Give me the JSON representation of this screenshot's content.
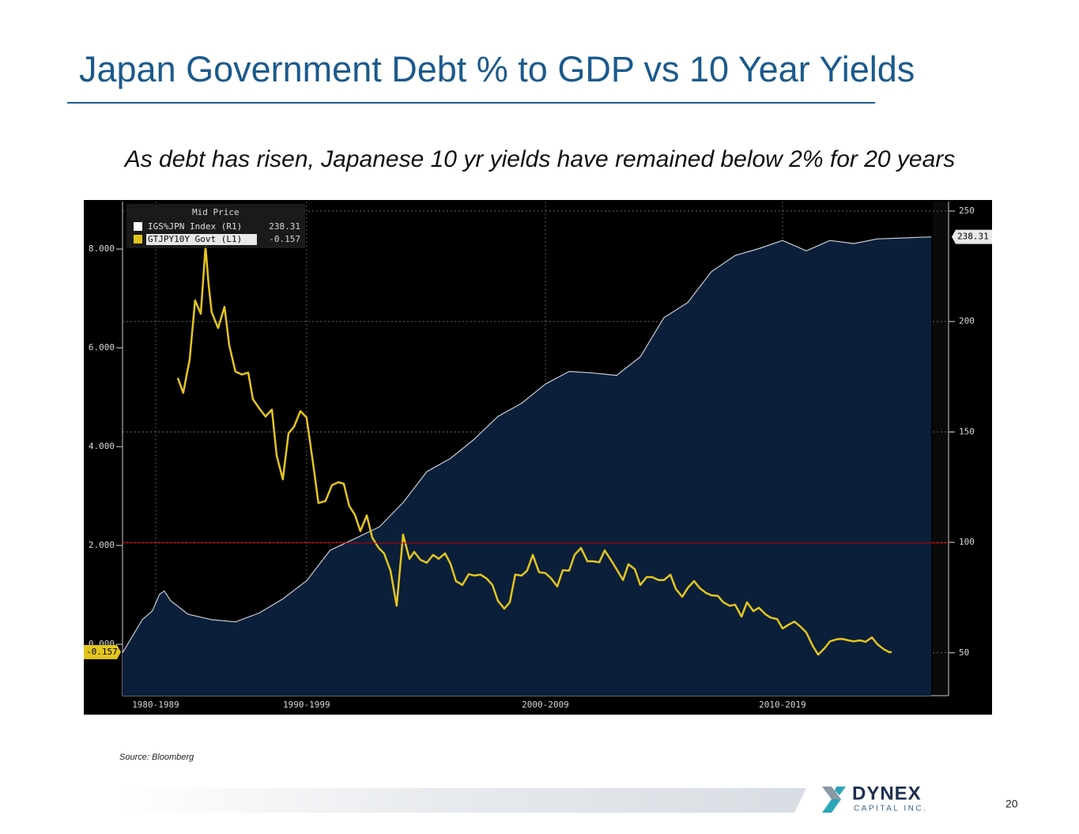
{
  "title": "Japan Government Debt % to GDP vs 10 Year Yields",
  "subtitle": "As debt has risen, Japanese 10 yr yields have remained below 2% for 20 years",
  "source": "Source: Bloomberg",
  "footer": {
    "logo": "DYNEX",
    "logo_sub": "CAPITAL INC.",
    "page": "20"
  },
  "chart_data": {
    "type": "line",
    "legend_title": "Mid Price",
    "xlim": [
      1987.17,
      2022
    ],
    "xticks": [
      {
        "value": 1988.57,
        "label": "1980-1989"
      },
      {
        "value": 1994.93,
        "label": "1990-1999"
      },
      {
        "value": 2005,
        "label": "2000-2009"
      },
      {
        "value": 2015,
        "label": "2010-2019"
      }
    ],
    "ylim": [
      -1.04,
      8.96
    ],
    "yticks": [
      {
        "value": 0,
        "label": "0.000"
      },
      {
        "value": 2,
        "label": "2.000"
      },
      {
        "value": 4,
        "label": "4.000"
      },
      {
        "value": 6,
        "label": "6.000"
      },
      {
        "value": 8,
        "label": "8.000"
      }
    ],
    "y2lim": [
      30.6,
      254.3
    ],
    "y2ticks": [
      50,
      100,
      150,
      200,
      250
    ],
    "grid": true,
    "reference_line": {
      "value": 2.05,
      "axis": "y",
      "color": "#c00000"
    },
    "series": [
      {
        "name": "IGS%JPN Index (R1)",
        "axis": "y2",
        "style": "area",
        "color": "#c8ccd2",
        "fill": "#0b1f3a",
        "x": [
          1987.17,
          1987.67,
          1988,
          1988.43,
          1988.73,
          1988.93,
          1989.2,
          1989.93,
          1990.93,
          1991.93,
          1992.93,
          1993.93,
          1994.93,
          1995.93,
          1996.93,
          1998,
          1999,
          2000,
          2001,
          2002,
          2003,
          2004,
          2005,
          2006,
          2007,
          2008,
          2009,
          2010,
          2011,
          2012,
          2013,
          2014,
          2015,
          2016,
          2017,
          2018,
          2019,
          2020,
          2020.67,
          2021.27
        ],
        "values": [
          50,
          59,
          65,
          69,
          76.5,
          78,
          73.6,
          67.5,
          65,
          64,
          68,
          74.4,
          82.6,
          96.5,
          101.5,
          107,
          118,
          132,
          138,
          146.7,
          157,
          163,
          171.7,
          177.4,
          176.7,
          175.6,
          184,
          201.8,
          208.6,
          222.6,
          229.9,
          233,
          236.7,
          232,
          236.7,
          235.3,
          237.4,
          237.8,
          238.1,
          238.31
        ]
      },
      {
        "name": "GTJPY10Y Govt (L1)",
        "axis": "y",
        "style": "line",
        "color": "#e3c51f",
        "x": [
          1989.5,
          1989.73,
          1990,
          1990.23,
          1990.47,
          1990.67,
          1990.8,
          1990.93,
          1991.2,
          1991.47,
          1991.67,
          1991.93,
          1992.2,
          1992.47,
          1992.67,
          1992.93,
          1993.2,
          1993.47,
          1993.67,
          1993.93,
          1994.17,
          1994.4,
          1994.67,
          1994.93,
          1995.2,
          1995.43,
          1995.73,
          1996,
          1996.27,
          1996.5,
          1996.73,
          1996.97,
          1997.2,
          1997.47,
          1997.7,
          1997.97,
          1998.2,
          1998.47,
          1998.73,
          1999,
          1999.27,
          1999.47,
          1999.73,
          2000,
          2000.27,
          2000.5,
          2000.77,
          2001,
          2001.23,
          2001.5,
          2001.77,
          2002,
          2002.27,
          2002.53,
          2002.77,
          2003,
          2003.27,
          2003.5,
          2003.73,
          2004,
          2004.23,
          2004.47,
          2004.73,
          2005,
          2005.23,
          2005.5,
          2005.73,
          2006,
          2006.23,
          2006.5,
          2006.77,
          2007,
          2007.27,
          2007.5,
          2007.77,
          2008,
          2008.27,
          2008.5,
          2008.77,
          2009,
          2009.27,
          2009.5,
          2009.77,
          2010,
          2010.27,
          2010.5,
          2010.77,
          2011,
          2011.27,
          2011.5,
          2011.77,
          2012,
          2012.27,
          2012.5,
          2012.77,
          2013,
          2013.27,
          2013.5,
          2013.77,
          2014,
          2014.27,
          2014.5,
          2014.77,
          2015,
          2015.27,
          2015.5,
          2015.77,
          2016,
          2016.27,
          2016.5,
          2016.77,
          2017,
          2017.27,
          2017.5,
          2017.77,
          2018,
          2018.27,
          2018.5,
          2018.77,
          2019,
          2019.27,
          2019.5,
          2019.6
        ],
        "values": [
          5.39,
          5.09,
          5.76,
          6.96,
          6.69,
          8.05,
          7.28,
          6.72,
          6.4,
          6.83,
          6.05,
          5.52,
          5.46,
          5.5,
          4.96,
          4.78,
          4.61,
          4.75,
          3.82,
          3.34,
          4.27,
          4.4,
          4.72,
          4.59,
          3.68,
          2.86,
          2.9,
          3.22,
          3.28,
          3.25,
          2.8,
          2.62,
          2.29,
          2.61,
          2.16,
          1.95,
          1.84,
          1.49,
          0.78,
          2.22,
          1.73,
          1.87,
          1.71,
          1.65,
          1.81,
          1.73,
          1.84,
          1.63,
          1.28,
          1.2,
          1.42,
          1.39,
          1.41,
          1.33,
          1.2,
          0.88,
          0.72,
          0.85,
          1.41,
          1.39,
          1.49,
          1.81,
          1.46,
          1.44,
          1.34,
          1.17,
          1.5,
          1.49,
          1.81,
          1.95,
          1.68,
          1.68,
          1.66,
          1.9,
          1.7,
          1.52,
          1.3,
          1.62,
          1.52,
          1.2,
          1.36,
          1.36,
          1.3,
          1.3,
          1.41,
          1.12,
          0.96,
          1.14,
          1.28,
          1.14,
          1.04,
          0.99,
          0.98,
          0.85,
          0.78,
          0.8,
          0.56,
          0.85,
          0.67,
          0.74,
          0.61,
          0.54,
          0.51,
          0.32,
          0.4,
          0.46,
          0.35,
          0.24,
          -0.03,
          -0.21,
          -0.08,
          0.06,
          0.1,
          0.11,
          0.08,
          0.06,
          0.08,
          0.05,
          0.14,
          0,
          -0.1,
          -0.16,
          -0.157
        ]
      }
    ]
  }
}
